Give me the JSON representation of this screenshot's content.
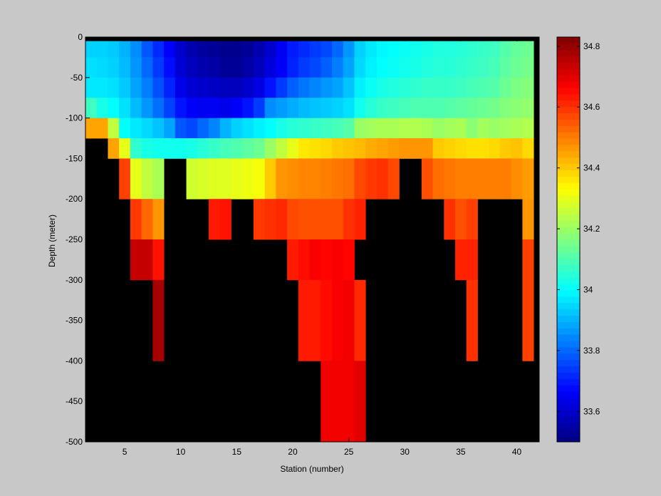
{
  "chart_data": {
    "type": "heatmap",
    "title": "",
    "xlabel": "Station (number)",
    "ylabel": "Depth (meter)",
    "xlim": [
      1.5,
      42.0
    ],
    "ylim": [
      -500,
      0
    ],
    "x_ticks": [
      "5",
      "10",
      "15",
      "20",
      "25",
      "30",
      "35",
      "40"
    ],
    "x_tick_values": [
      5,
      10,
      15,
      20,
      25,
      30,
      35,
      40
    ],
    "y_ticks": [
      "0",
      "-50",
      "-100",
      "-150",
      "-200",
      "-250",
      "-300",
      "-350",
      "-400",
      "-450",
      "-500"
    ],
    "y_tick_values": [
      0,
      -50,
      -100,
      -150,
      -200,
      -250,
      -300,
      -350,
      -400,
      -450,
      -500
    ],
    "stations": [
      2,
      3,
      4,
      5,
      6,
      7,
      8,
      9,
      10,
      11,
      12,
      13,
      14,
      15,
      16,
      17,
      18,
      19,
      20,
      21,
      22,
      23,
      24,
      25,
      26,
      27,
      28,
      29,
      30,
      31,
      32,
      33,
      34,
      35,
      36,
      37,
      38,
      39,
      40,
      41
    ],
    "depth_bin_tops": [
      -5,
      -25,
      -50,
      -75,
      -100,
      -125,
      -150,
      -200,
      -250,
      -300,
      -400,
      -500
    ],
    "depth_bin_bottoms": [
      -25,
      -50,
      -75,
      -100,
      -125,
      -150,
      -200,
      -250,
      -300,
      -400,
      -500,
      -500
    ],
    "no_data_color": "#000000",
    "grid": false,
    "salinity": [
      [
        33.94,
        33.94,
        33.93,
        33.9,
        33.85,
        33.78,
        33.72,
        33.66,
        33.6,
        33.56,
        33.54,
        33.53,
        33.52,
        33.52,
        33.53,
        33.56,
        33.6,
        33.65,
        33.7,
        33.72,
        33.74,
        33.76,
        33.8,
        33.86,
        33.94,
        33.97,
        33.99,
        34.0,
        34.01,
        34.02,
        34.03,
        34.04,
        34.04,
        34.05,
        34.06,
        34.07,
        34.08,
        34.11,
        34.13,
        34.14
      ],
      [
        33.96,
        33.95,
        33.94,
        33.91,
        33.86,
        33.8,
        33.74,
        33.68,
        33.61,
        33.58,
        33.56,
        33.55,
        33.53,
        33.53,
        33.55,
        33.58,
        33.62,
        33.66,
        33.71,
        33.74,
        33.76,
        33.79,
        33.83,
        33.88,
        33.95,
        33.98,
        34.0,
        34.01,
        34.02,
        34.03,
        34.04,
        34.05,
        34.05,
        34.06,
        34.07,
        34.08,
        34.09,
        34.12,
        34.14,
        34.15
      ],
      [
        33.97,
        33.97,
        33.96,
        33.93,
        33.88,
        33.83,
        33.77,
        33.71,
        33.64,
        33.61,
        33.6,
        33.59,
        33.58,
        33.58,
        33.6,
        33.63,
        33.69,
        33.74,
        33.79,
        33.82,
        33.84,
        33.86,
        33.88,
        33.92,
        33.98,
        34.01,
        34.03,
        34.04,
        34.05,
        34.06,
        34.07,
        34.07,
        34.07,
        34.08,
        34.09,
        34.1,
        34.11,
        34.14,
        34.16,
        34.17
      ],
      [
        34.08,
        34.03,
        34.0,
        33.96,
        33.91,
        33.86,
        33.81,
        33.75,
        33.69,
        33.66,
        33.65,
        33.65,
        33.64,
        33.66,
        33.69,
        33.74,
        33.85,
        33.87,
        33.89,
        33.91,
        33.92,
        33.93,
        33.94,
        33.96,
        34.02,
        34.05,
        34.07,
        34.08,
        34.09,
        34.1,
        34.1,
        34.1,
        34.11,
        34.12,
        34.13,
        34.14,
        34.15,
        34.17,
        34.18,
        34.19
      ],
      [
        34.45,
        34.45,
        34.25,
        34.0,
        33.97,
        33.95,
        33.92,
        33.88,
        33.78,
        33.76,
        33.8,
        33.84,
        33.9,
        33.94,
        33.96,
        33.98,
        34.0,
        34.03,
        34.05,
        34.06,
        34.07,
        34.08,
        34.09,
        34.11,
        34.2,
        34.21,
        34.22,
        34.22,
        34.23,
        34.23,
        34.22,
        34.2,
        34.21,
        34.22,
        34.18,
        34.21,
        34.2,
        34.21,
        34.22,
        34.23
      ],
      [
        null,
        null,
        34.45,
        34.3,
        34.06,
        34.03,
        34.02,
        34.02,
        34.02,
        34.03,
        34.05,
        34.07,
        34.09,
        34.1,
        34.12,
        34.14,
        34.2,
        34.25,
        34.3,
        34.36,
        34.37,
        34.38,
        34.4,
        34.41,
        34.42,
        34.44,
        34.45,
        34.46,
        34.47,
        34.47,
        34.47,
        34.4,
        34.39,
        34.38,
        34.37,
        34.37,
        34.38,
        34.4,
        34.41,
        34.38
      ],
      [
        null,
        null,
        null,
        34.58,
        34.3,
        34.25,
        34.22,
        null,
        null,
        34.27,
        34.28,
        34.29,
        34.29,
        34.3,
        34.31,
        34.32,
        34.4,
        34.47,
        34.48,
        34.49,
        34.49,
        34.5,
        34.51,
        34.52,
        34.57,
        34.59,
        34.6,
        34.57,
        null,
        null,
        34.56,
        34.52,
        34.51,
        34.5,
        34.5,
        34.5,
        34.5,
        34.5,
        34.48,
        34.46
      ],
      [
        null,
        null,
        null,
        null,
        34.59,
        34.53,
        34.47,
        null,
        null,
        null,
        null,
        34.63,
        34.64,
        null,
        null,
        34.59,
        34.6,
        34.61,
        34.57,
        34.56,
        34.56,
        34.56,
        34.56,
        34.6,
        34.62,
        null,
        null,
        null,
        null,
        null,
        null,
        null,
        34.6,
        34.56,
        34.58,
        null,
        null,
        null,
        null,
        34.47
      ],
      [
        null,
        null,
        null,
        null,
        34.74,
        34.74,
        34.64,
        null,
        null,
        null,
        null,
        null,
        null,
        null,
        null,
        null,
        null,
        null,
        34.63,
        34.65,
        34.67,
        34.66,
        34.67,
        34.66,
        null,
        null,
        null,
        null,
        null,
        null,
        null,
        null,
        null,
        34.62,
        34.62,
        null,
        null,
        null,
        null,
        34.58
      ],
      [
        null,
        null,
        null,
        null,
        null,
        null,
        34.78,
        null,
        null,
        null,
        null,
        null,
        null,
        null,
        null,
        null,
        null,
        null,
        null,
        34.63,
        34.63,
        34.65,
        34.67,
        34.68,
        34.61,
        null,
        null,
        null,
        null,
        null,
        null,
        null,
        null,
        null,
        34.6,
        null,
        null,
        null,
        null,
        34.58
      ],
      [
        null,
        null,
        null,
        null,
        null,
        null,
        null,
        null,
        null,
        null,
        null,
        null,
        null,
        null,
        null,
        null,
        null,
        null,
        null,
        null,
        null,
        34.68,
        34.68,
        34.68,
        34.7,
        null,
        null,
        null,
        null,
        null,
        null,
        null,
        null,
        null,
        null,
        null,
        null,
        null,
        null,
        null
      ],
      [
        null,
        null,
        null,
        null,
        null,
        null,
        null,
        null,
        null,
        null,
        null,
        null,
        null,
        null,
        null,
        null,
        null,
        null,
        null,
        null,
        null,
        null,
        null,
        null,
        null,
        null,
        null,
        null,
        null,
        null,
        null,
        null,
        null,
        null,
        null,
        null,
        null,
        null,
        null,
        null
      ]
    ],
    "colorbar": {
      "clim": [
        33.5,
        34.83
      ],
      "colormap": "jet",
      "ticks": [
        "33.6",
        "33.8",
        "34",
        "34.2",
        "34.4",
        "34.6",
        "34.8"
      ],
      "tick_values": [
        33.6,
        33.8,
        34.0,
        34.2,
        34.4,
        34.6,
        34.8
      ],
      "placement": "right"
    }
  },
  "colors": {
    "figure_background": "#c8c8c8",
    "axes_background": "#000000",
    "axis_color": "#000000"
  }
}
